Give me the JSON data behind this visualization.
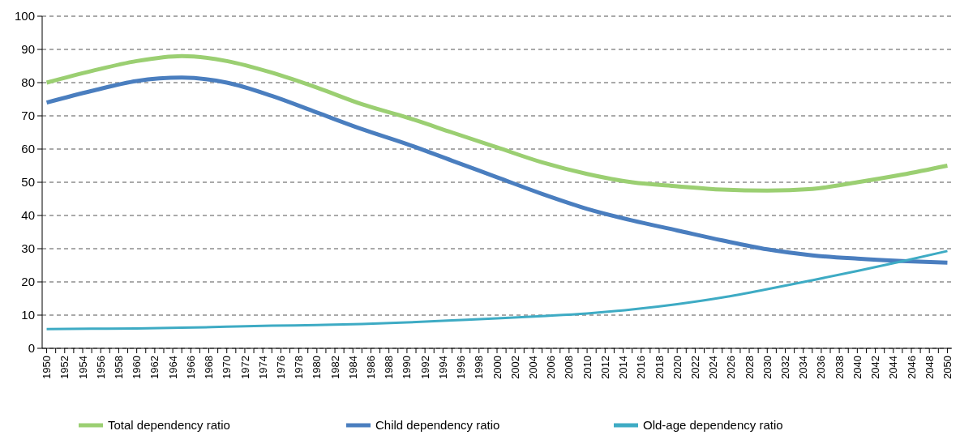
{
  "chart_data": {
    "type": "line",
    "x": [
      1950,
      1955,
      1960,
      1965,
      1970,
      1975,
      1980,
      1985,
      1990,
      1995,
      2000,
      2005,
      2010,
      2015,
      2020,
      2025,
      2030,
      2035,
      2040,
      2045,
      2050
    ],
    "series": [
      {
        "name": "Total dependency ratio",
        "color": "#9bcf72",
        "values": [
          80,
          83.5,
          86.5,
          88,
          86.5,
          83,
          78.5,
          73.5,
          69.5,
          65,
          60.5,
          56,
          52.5,
          50,
          48.8,
          47.8,
          47.5,
          48,
          50,
          52.3,
          55
        ]
      },
      {
        "name": "Child dependency ratio",
        "color": "#4a7ebf",
        "values": [
          74,
          77.5,
          80.5,
          81.5,
          80,
          76,
          71,
          66,
          61.5,
          56.5,
          51.5,
          46.5,
          42,
          38.5,
          35.5,
          32.5,
          29.8,
          28,
          27,
          26.3,
          25.8
        ]
      },
      {
        "name": "Old-age dependency ratio",
        "color": "#3eabc4",
        "values": [
          5.8,
          5.9,
          6,
          6.2,
          6.5,
          6.8,
          7,
          7.3,
          7.8,
          8.4,
          9,
          9.7,
          10.5,
          11.7,
          13.3,
          15.3,
          17.8,
          20.5,
          23.3,
          26.2,
          29.3
        ]
      }
    ],
    "xlim": [
      1949.5,
      2050.5
    ],
    "xticks": [
      1950,
      {
        "value": 1951,
        "label": null
      },
      1952,
      {
        "value": 1953,
        "label": null
      },
      1954,
      {
        "value": 1955,
        "label": null
      },
      1956,
      {
        "value": 1957,
        "label": null
      },
      1958,
      {
        "value": 1959,
        "label": null
      },
      1960,
      {
        "value": 1961,
        "label": null
      },
      1962,
      {
        "value": 1963,
        "label": null
      },
      1964,
      {
        "value": 1965,
        "label": null
      },
      1966,
      {
        "value": 1967,
        "label": null
      },
      1968,
      {
        "value": 1969,
        "label": null
      },
      1970,
      {
        "value": 1971,
        "label": null
      },
      1972,
      {
        "value": 1973,
        "label": null
      },
      1974,
      {
        "value": 1975,
        "label": null
      },
      1976,
      {
        "value": 1977,
        "label": null
      },
      1978,
      {
        "value": 1979,
        "label": null
      },
      1980,
      {
        "value": 1981,
        "label": null
      },
      1982,
      {
        "value": 1983,
        "label": null
      },
      1984,
      {
        "value": 1985,
        "label": null
      },
      1986,
      {
        "value": 1987,
        "label": null
      },
      1988,
      {
        "value": 1989,
        "label": null
      },
      1990,
      {
        "value": 1991,
        "label": null
      },
      1992,
      {
        "value": 1993,
        "label": null
      },
      1994,
      {
        "value": 1995,
        "label": null
      },
      1996,
      {
        "value": 1997,
        "label": null
      },
      1998,
      {
        "value": 1999,
        "label": null
      },
      2000,
      {
        "value": 2001,
        "label": null
      },
      2002,
      {
        "value": 2003,
        "label": null
      },
      2004,
      {
        "value": 2005,
        "label": null
      },
      2006,
      {
        "value": 2007,
        "label": null
      },
      2008,
      {
        "value": 2009,
        "label": null
      },
      2010,
      {
        "value": 2011,
        "label": null
      },
      2012,
      {
        "value": 2013,
        "label": null
      },
      2014,
      {
        "value": 2015,
        "label": null
      },
      2016,
      {
        "value": 2017,
        "label": null
      },
      2018,
      {
        "value": 2019,
        "label": null
      },
      2020,
      {
        "value": 2021,
        "label": null
      },
      2022,
      {
        "value": 2023,
        "label": null
      },
      2024,
      {
        "value": 2025,
        "label": null
      },
      2026,
      {
        "value": 2027,
        "label": null
      },
      2028,
      {
        "value": 2029,
        "label": null
      },
      2030,
      {
        "value": 2031,
        "label": null
      },
      2032,
      {
        "value": 2033,
        "label": null
      },
      2034,
      {
        "value": 2035,
        "label": null
      },
      2036,
      {
        "value": 2037,
        "label": null
      },
      2038,
      {
        "value": 2039,
        "label": null
      },
      2040,
      {
        "value": 2041,
        "label": null
      },
      2042,
      {
        "value": 2043,
        "label": null
      },
      2044,
      {
        "value": 2045,
        "label": null
      },
      2046,
      {
        "value": 2047,
        "label": null
      },
      2048,
      {
        "value": 2049,
        "label": null
      },
      2050
    ],
    "ylim": [
      0,
      100
    ],
    "yticks": [
      0,
      10,
      20,
      30,
      40,
      50,
      60,
      70,
      80,
      90,
      100
    ],
    "grid": "y",
    "legend": "bottom",
    "marker": "none",
    "line_style": "solid"
  }
}
